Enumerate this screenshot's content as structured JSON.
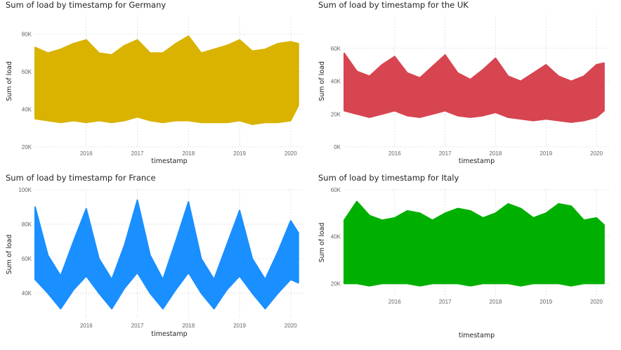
{
  "chart_data": [
    {
      "type": "line",
      "title": "Sum of load by timestamp for Germany",
      "xlabel": "timestamp",
      "ylabel": "Sum of load",
      "color": "#D9B300",
      "x_range": [
        2015.0,
        2020.25
      ],
      "x_ticks": [
        2016,
        2017,
        2018,
        2019,
        2020
      ],
      "x_tick_labels": [
        "2016",
        "2017",
        "2018",
        "2019",
        "2020"
      ],
      "ylim": [
        20000,
        90000
      ],
      "y_ticks": [
        20000,
        40000,
        60000,
        80000
      ],
      "y_tick_labels": [
        "20K",
        "40K",
        "60K",
        "80K"
      ],
      "grid": true,
      "series": [
        {
          "x": [
            2015.0,
            2015.25,
            2015.5,
            2015.75,
            2016.0,
            2016.25,
            2016.5,
            2016.75,
            2017.0,
            2017.25,
            2017.5,
            2017.75,
            2018.0,
            2018.25,
            2018.5,
            2018.75,
            2019.0,
            2019.25,
            2019.5,
            2019.75,
            2020.0,
            2020.15
          ],
          "min": [
            35000,
            34000,
            33000,
            34000,
            33000,
            34000,
            33000,
            34000,
            36000,
            34000,
            33000,
            34000,
            34000,
            33000,
            33000,
            33000,
            34000,
            32000,
            33000,
            33000,
            34000,
            42000
          ],
          "max": [
            73000,
            70000,
            72000,
            75000,
            77000,
            70000,
            69000,
            74000,
            77000,
            70000,
            70000,
            75000,
            79000,
            70000,
            72000,
            74000,
            77000,
            71000,
            72000,
            75000,
            76000,
            75000
          ]
        }
      ]
    },
    {
      "type": "line",
      "title": "Sum of load by timestamp for the UK",
      "xlabel": "timestamp",
      "ylabel": "Sum of load",
      "color": "#D64550",
      "x_range": [
        2015.0,
        2020.25
      ],
      "x_ticks": [
        2016,
        2017,
        2018,
        2019,
        2020
      ],
      "x_tick_labels": [
        "2016",
        "2017",
        "2018",
        "2019",
        "2020"
      ],
      "ylim": [
        0,
        80000
      ],
      "y_ticks": [
        0,
        20000,
        40000,
        60000
      ],
      "y_tick_labels": [
        "0K",
        "20K",
        "40K",
        "60K"
      ],
      "grid": true,
      "series": [
        {
          "x": [
            2015.0,
            2015.25,
            2015.5,
            2015.75,
            2016.0,
            2016.25,
            2016.5,
            2016.75,
            2017.0,
            2017.25,
            2017.5,
            2017.75,
            2018.0,
            2018.25,
            2018.5,
            2018.75,
            2019.0,
            2019.25,
            2019.5,
            2019.75,
            2020.0,
            2020.15
          ],
          "min": [
            22000,
            20000,
            18000,
            20000,
            22000,
            19000,
            18000,
            20000,
            22000,
            19000,
            18000,
            19000,
            21000,
            18000,
            17000,
            16000,
            17000,
            16000,
            15000,
            16000,
            18000,
            22000
          ],
          "max": [
            57000,
            46000,
            43000,
            50000,
            55000,
            45000,
            42000,
            49000,
            56000,
            45000,
            41000,
            47000,
            54000,
            43000,
            40000,
            45000,
            50000,
            43000,
            40000,
            43000,
            50000,
            51000
          ]
        }
      ]
    },
    {
      "type": "line",
      "title": "Sum of load by timestamp for France",
      "xlabel": "timestamp",
      "ylabel": "Sum of load",
      "color": "#1A8FFF",
      "x_range": [
        2015.0,
        2020.25
      ],
      "x_ticks": [
        2016,
        2017,
        2018,
        2019,
        2020
      ],
      "x_tick_labels": [
        "2016",
        "2017",
        "2018",
        "2019",
        "2020"
      ],
      "ylim": [
        25000,
        100000
      ],
      "y_ticks": [
        40000,
        60000,
        80000,
        100000
      ],
      "y_tick_labels": [
        "40K",
        "60K",
        "80K",
        "100K"
      ],
      "grid": true,
      "series": [
        {
          "x": [
            2015.0,
            2015.25,
            2015.5,
            2015.75,
            2016.0,
            2016.25,
            2016.5,
            2016.75,
            2017.0,
            2017.25,
            2017.5,
            2017.75,
            2018.0,
            2018.25,
            2018.5,
            2018.75,
            2019.0,
            2019.25,
            2019.5,
            2019.75,
            2020.0,
            2020.15
          ],
          "min": [
            48000,
            40000,
            31000,
            42000,
            50000,
            40000,
            31000,
            43000,
            52000,
            40000,
            31000,
            42000,
            52000,
            40000,
            31000,
            42000,
            50000,
            40000,
            31000,
            40000,
            48000,
            46000
          ],
          "max": [
            90000,
            62000,
            50000,
            70000,
            89000,
            60000,
            48000,
            68000,
            94000,
            62000,
            48000,
            70000,
            93000,
            60000,
            48000,
            68000,
            88000,
            60000,
            48000,
            64000,
            82000,
            75000
          ]
        }
      ]
    },
    {
      "type": "line",
      "title": "Sum of load by timestamp for Italy",
      "xlabel": "timestamp",
      "ylabel": "Sum of load",
      "color": "#00B000",
      "x_range": [
        2015.0,
        2020.25
      ],
      "x_ticks": [
        2016,
        2017,
        2018,
        2019,
        2020
      ],
      "x_tick_labels": [
        "2016",
        "2017",
        "2018",
        "2019",
        "2020"
      ],
      "ylim": [
        15000,
        60000
      ],
      "y_ticks": [
        20000,
        40000,
        60000
      ],
      "y_tick_labels": [
        "20K",
        "40K",
        "60K"
      ],
      "grid": true,
      "series": [
        {
          "x": [
            2015.0,
            2015.25,
            2015.5,
            2015.75,
            2016.0,
            2016.25,
            2016.5,
            2016.75,
            2017.0,
            2017.25,
            2017.5,
            2017.75,
            2018.0,
            2018.25,
            2018.5,
            2018.75,
            2019.0,
            2019.25,
            2019.5,
            2019.75,
            2020.0,
            2020.15
          ],
          "min": [
            20000,
            20000,
            19000,
            20000,
            20000,
            20000,
            19000,
            20000,
            20000,
            20000,
            19000,
            20000,
            20000,
            20000,
            19000,
            20000,
            20000,
            20000,
            19000,
            20000,
            20000,
            20000
          ],
          "max": [
            47000,
            55000,
            49000,
            47000,
            48000,
            51000,
            50000,
            47000,
            50000,
            52000,
            51000,
            48000,
            50000,
            54000,
            52000,
            48000,
            50000,
            54000,
            53000,
            47000,
            48000,
            45000
          ]
        }
      ]
    }
  ]
}
